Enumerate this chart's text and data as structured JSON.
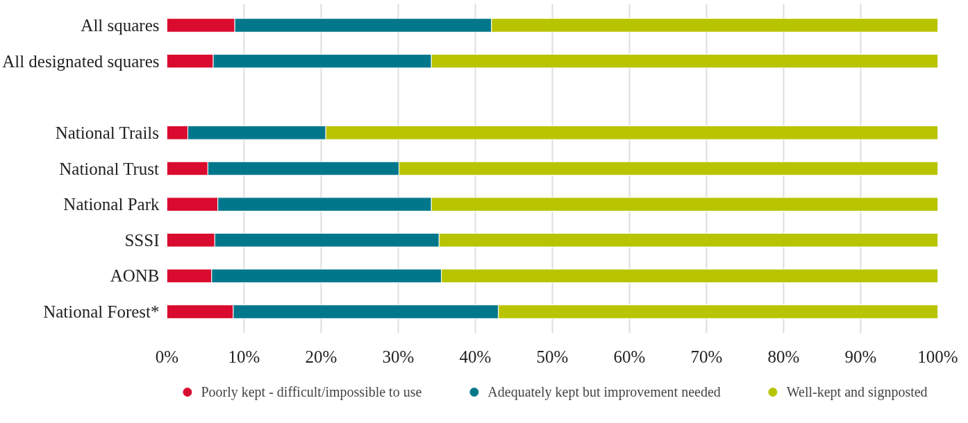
{
  "chart_data": {
    "type": "bar",
    "orientation": "horizontal",
    "stacked": true,
    "categories": [
      "All squares",
      "All designated squares",
      null,
      "National Trails",
      "National Trust",
      "National Park",
      "SSSI",
      "AONB",
      "National Forest*"
    ],
    "series": [
      {
        "name": "Poorly kept - difficult/impossible to use",
        "color": "#d90b2e",
        "values": [
          8.8,
          6.0,
          null,
          2.7,
          5.3,
          6.6,
          6.2,
          5.8,
          8.6
        ]
      },
      {
        "name": "Adequately kept but improvement needed",
        "color": "#00778b",
        "values": [
          33.3,
          28.3,
          null,
          17.9,
          24.8,
          27.7,
          29.1,
          29.8,
          34.4
        ]
      },
      {
        "name": "Well-kept and signposted",
        "color": "#b8c400",
        "values": [
          57.9,
          65.7,
          null,
          79.4,
          69.9,
          65.7,
          64.7,
          64.4,
          57.0
        ]
      }
    ],
    "xlim": [
      0,
      100
    ],
    "xticks": [
      {
        "value": 0,
        "label": "0%"
      },
      {
        "value": 10,
        "label": "10%"
      },
      {
        "value": 20,
        "label": "20%"
      },
      {
        "value": 30,
        "label": "30%"
      },
      {
        "value": 40,
        "label": "40%"
      },
      {
        "value": 50,
        "label": "50%"
      },
      {
        "value": 60,
        "label": "60%"
      },
      {
        "value": 70,
        "label": "70%"
      },
      {
        "value": 80,
        "label": "80%"
      },
      {
        "value": 90,
        "label": "90%"
      },
      {
        "value": 100,
        "label": "100%"
      }
    ],
    "grid": "x",
    "legend": "bottom"
  }
}
